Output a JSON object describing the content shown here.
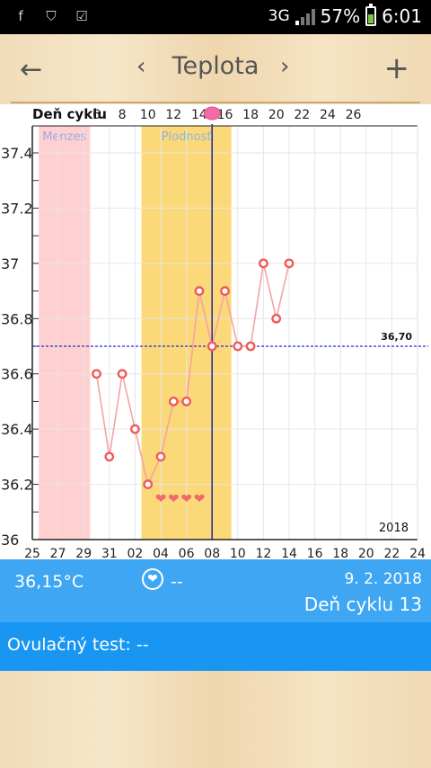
{
  "statusbar": {
    "network": "3G",
    "battery": "57%",
    "time": "6:01",
    "battery_level": 0.57,
    "icons": [
      "facebook-icon",
      "shield-icon",
      "checklist-icon"
    ]
  },
  "toolbar": {
    "title": "Teplota",
    "back_glyph": "←",
    "prev_glyph": "‹",
    "next_glyph": "›",
    "add_glyph": "+"
  },
  "chart_data": {
    "type": "line",
    "header_label": "Deň cyklu",
    "cycle_tick_labels": [
      "6",
      "8",
      "10",
      "12",
      "14",
      "16",
      "18",
      "20",
      "22",
      "24",
      "26"
    ],
    "date_tick_labels": [
      "25",
      "27",
      "29",
      "31",
      "02",
      "04",
      "06",
      "08",
      "10",
      "12",
      "14",
      "16",
      "18",
      "20",
      "22",
      "24"
    ],
    "y_tick_labels": [
      "37.4",
      "37.2",
      "37",
      "36.8",
      "36.6",
      "36.4",
      "36.2",
      "36"
    ],
    "ylim": [
      36,
      37.5
    ],
    "regions": [
      {
        "label": "Menzes",
        "from": "26",
        "to": "29"
      },
      {
        "label": "Plodnosť",
        "from": "03",
        "to": "09"
      }
    ],
    "current_day": "08",
    "reference_line": {
      "value": 36.7,
      "label": "36,70"
    },
    "year_label": "2018",
    "series": [
      {
        "points": [
          {
            "x": "30",
            "y": 36.6
          },
          {
            "x": "31",
            "y": 36.3
          },
          {
            "x": "01",
            "y": 36.6
          },
          {
            "x": "02",
            "y": 36.4
          },
          {
            "x": "03",
            "y": 36.2
          },
          {
            "x": "04",
            "y": 36.3
          },
          {
            "x": "05",
            "y": 36.5
          },
          {
            "x": "06",
            "y": 36.5
          },
          {
            "x": "07",
            "y": 36.9
          },
          {
            "x": "08",
            "y": 36.7
          },
          {
            "x": "09",
            "y": 36.9
          },
          {
            "x": "10",
            "y": 36.7
          },
          {
            "x": "11",
            "y": 36.7
          },
          {
            "x": "12",
            "y": 37.0
          },
          {
            "x": "13",
            "y": 36.8
          },
          {
            "x": "14",
            "y": 37.0
          }
        ]
      }
    ],
    "heart_days": [
      "04",
      "05",
      "06",
      "07"
    ]
  },
  "info": {
    "temperature": "36,15°C",
    "heart_value": "--",
    "date": "9. 2. 2018",
    "cycle_day": "Deň cyklu 13"
  },
  "ovulation": {
    "label": "Ovulačný test: --"
  },
  "colors": {
    "info_bar": "#3ea6f2",
    "ovulation_bar": "#1896f2",
    "menses": "#ffd0d0",
    "fertile": "#fcd978",
    "line": "#f5a3a3",
    "marker": "#ef5a5a",
    "reference": "#1f2fd6"
  }
}
